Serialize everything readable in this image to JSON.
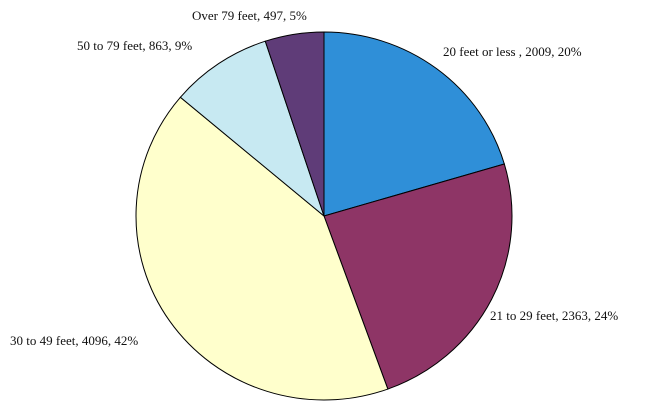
{
  "chart_data": {
    "type": "pie",
    "title": "",
    "slices": [
      {
        "label": "20 feet or less ",
        "value": 2009,
        "percent": 20,
        "color": "#2f8fd8",
        "text": "20 feet or less , 2009, 20%"
      },
      {
        "label": "21 to 29 feet",
        "value": 2363,
        "percent": 24,
        "color": "#8e3566",
        "text": "21 to 29 feet, 2363, 24%"
      },
      {
        "label": "30 to 49 feet",
        "value": 4096,
        "percent": 42,
        "color": "#ffffcc",
        "text": "30 to 49 feet, 4096, 42%"
      },
      {
        "label": "50 to 79 feet",
        "value": 863,
        "percent": 9,
        "color": "#c7e9f2",
        "text": "50 to 79 feet, 863, 9%"
      },
      {
        "label": "Over 79 feet",
        "value": 497,
        "percent": 5,
        "color": "#5f3c78",
        "text": "Over 79 feet, 497, 5%"
      }
    ]
  }
}
